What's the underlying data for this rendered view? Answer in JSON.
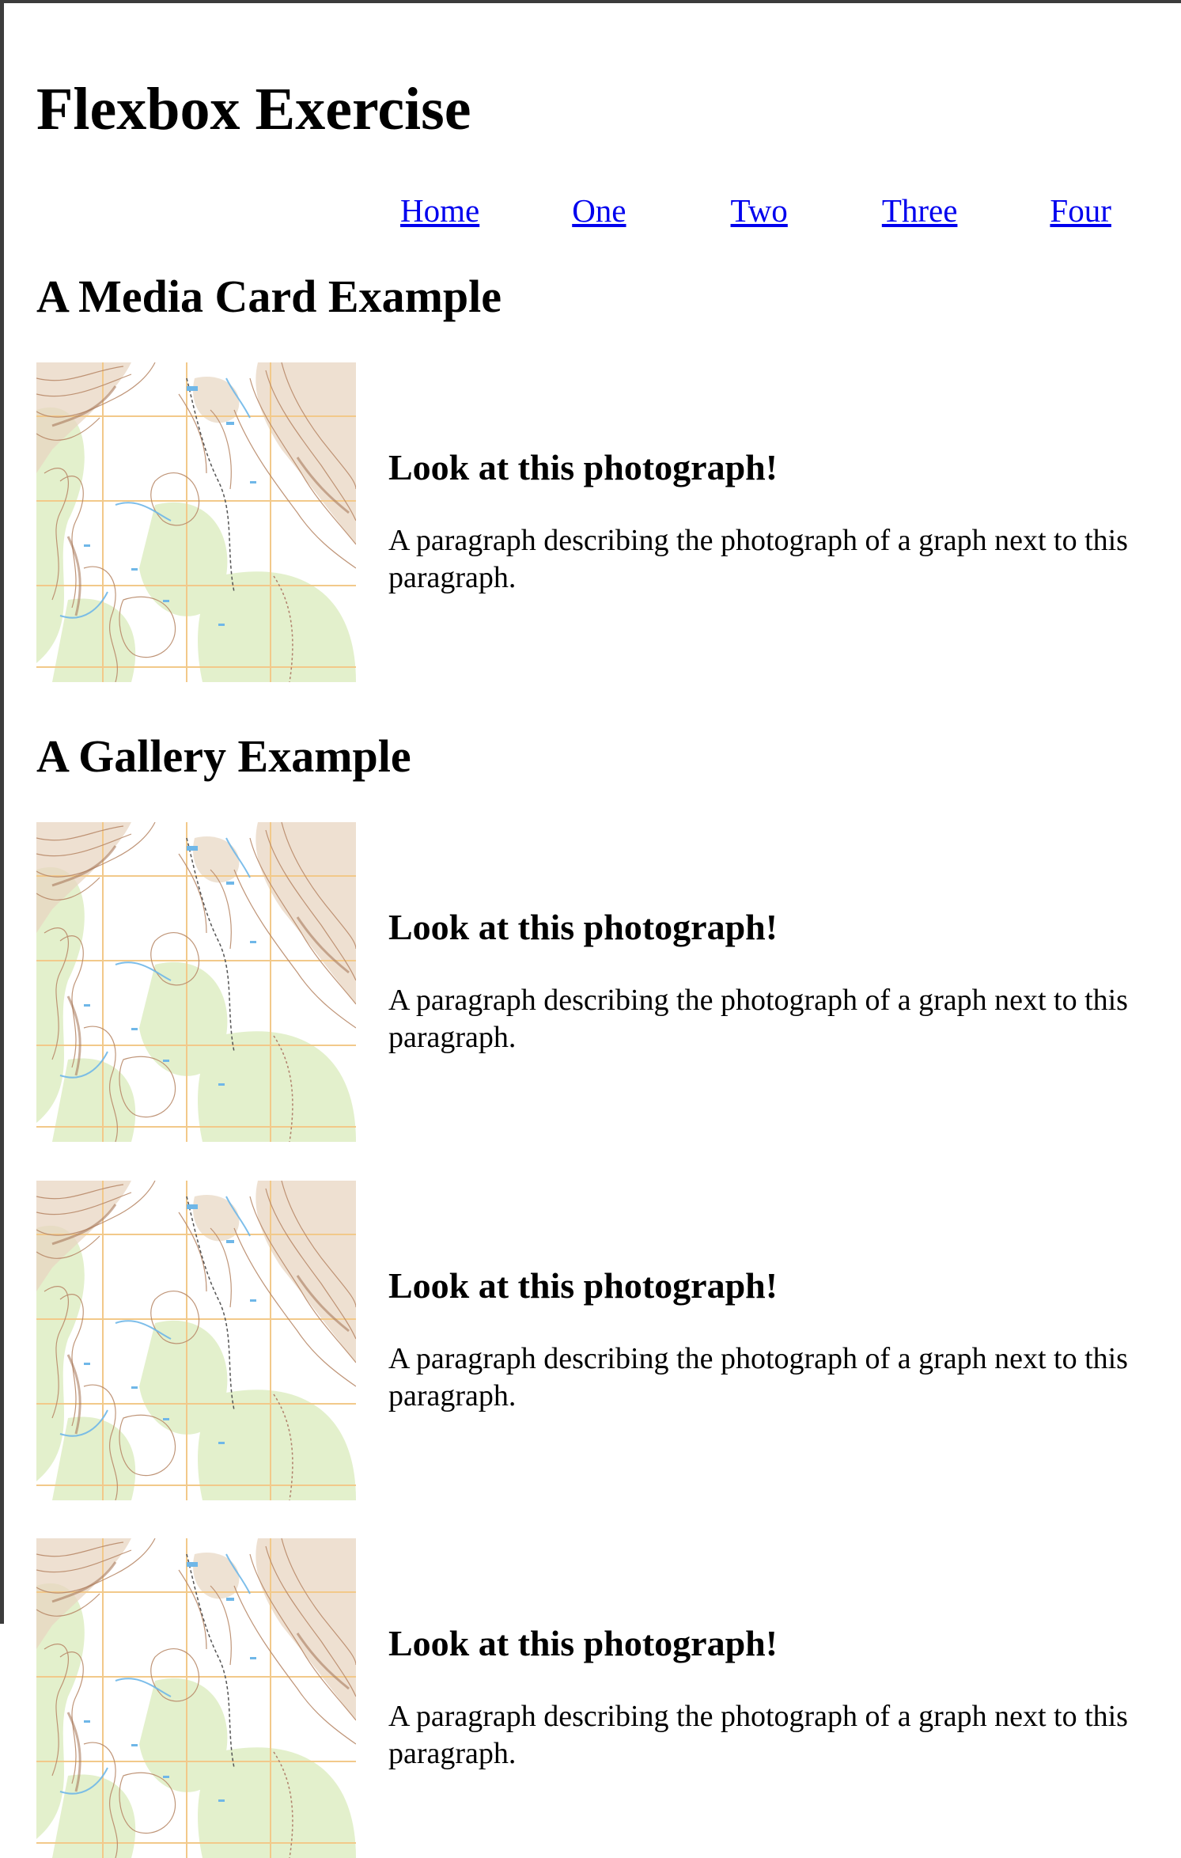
{
  "page": {
    "title": "Flexbox Exercise"
  },
  "nav": {
    "items": [
      "Home",
      "One",
      "Two",
      "Three",
      "Four"
    ]
  },
  "sections": {
    "media_card": {
      "heading": "A Media Card Example",
      "card": {
        "heading": "Look at this photograph!",
        "text": "A paragraph describing the photograph of a graph next to this paragraph."
      }
    },
    "gallery": {
      "heading": "A Gallery Example",
      "cards": [
        {
          "heading": "Look at this photograph!",
          "text": "A paragraph describing the photograph of a graph next to this paragraph."
        },
        {
          "heading": "Look at this photograph!",
          "text": "A paragraph describing the photograph of a graph next to this paragraph."
        },
        {
          "heading": "Look at this photograph!",
          "text": "A paragraph describing the photograph of a graph next to this paragraph."
        }
      ]
    }
  },
  "colors": {
    "link": "#0000ee",
    "map_green": "#e3f0cc",
    "map_contour": "#b98a6a",
    "map_grid": "#f2c98a",
    "map_water": "#6fb7e8"
  }
}
